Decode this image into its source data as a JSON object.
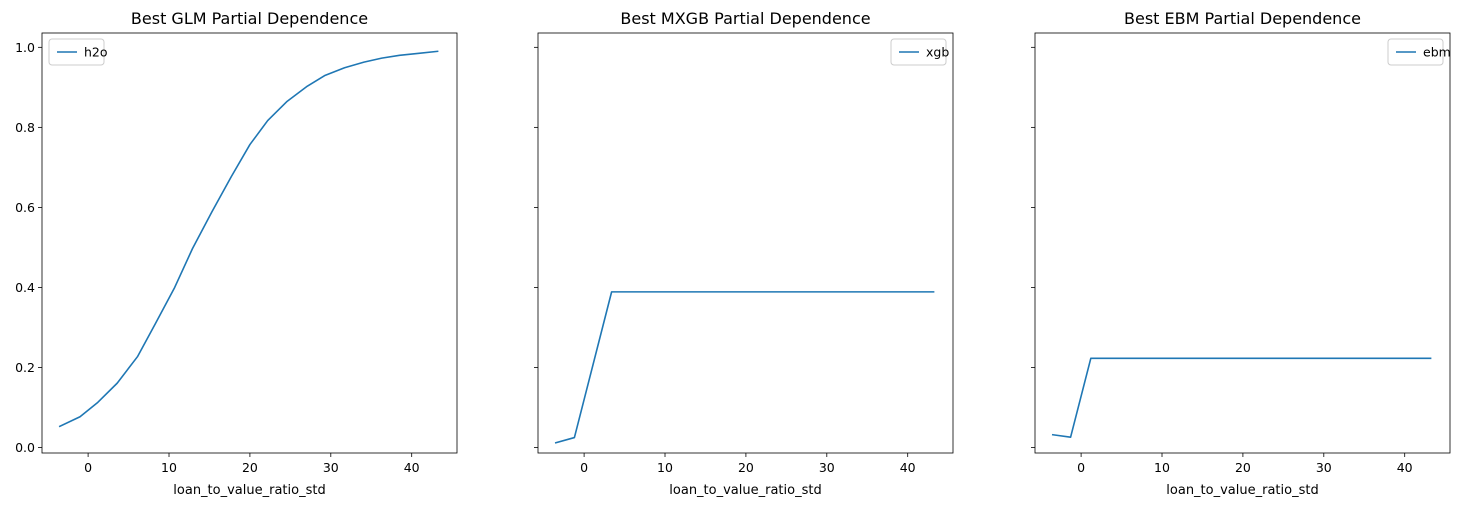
{
  "chart_data": [
    {
      "type": "line",
      "title": "Best GLM Partial Dependence",
      "xlabel": "loan_to_value_ratio_std",
      "ylabel": "",
      "xlim": [
        -5.7,
        45.6
      ],
      "ylim": [
        -0.0136,
        1.0358
      ],
      "xticks": [
        0,
        10,
        20,
        30,
        40
      ],
      "yticks": [
        0.0,
        0.2,
        0.4,
        0.6,
        0.8,
        1.0
      ],
      "ytick_labels": [
        "0.0",
        "0.2",
        "0.4",
        "0.6",
        "0.8",
        "1.0"
      ],
      "show_yticklabels": true,
      "legend": "upper left",
      "grid": false,
      "series": [
        {
          "name": "h2o",
          "color": "#1f77b4",
          "x": [
            -3.5,
            -1.0,
            1.2,
            3.6,
            6.1,
            8.3,
            10.7,
            12.9,
            15.3,
            17.7,
            20.0,
            22.2,
            24.6,
            27.1,
            29.3,
            31.7,
            34.1,
            36.3,
            38.5,
            40.9,
            43.2
          ],
          "y": [
            0.053,
            0.077,
            0.113,
            0.161,
            0.227,
            0.309,
            0.4,
            0.497,
            0.589,
            0.677,
            0.757,
            0.817,
            0.865,
            0.903,
            0.93,
            0.949,
            0.963,
            0.973,
            0.98,
            0.985,
            0.99
          ]
        }
      ]
    },
    {
      "type": "line",
      "title": "Best MXGB Partial Dependence",
      "xlabel": "loan_to_value_ratio_std",
      "ylabel": "",
      "xlim": [
        -5.7,
        45.6
      ],
      "ylim": [
        -0.0136,
        1.0358
      ],
      "xticks": [
        0,
        10,
        20,
        30,
        40
      ],
      "yticks": [
        0.0,
        0.2,
        0.4,
        0.6,
        0.8,
        1.0
      ],
      "ytick_labels": [
        "0.0",
        "0.2",
        "0.4",
        "0.6",
        "0.8",
        "1.0"
      ],
      "show_yticklabels": false,
      "legend": "upper right",
      "grid": false,
      "series": [
        {
          "name": "xgb",
          "color": "#1f77b4",
          "x": [
            -3.5,
            -1.2,
            3.4,
            43.2
          ],
          "y": [
            0.012,
            0.025,
            0.389,
            0.389
          ]
        }
      ]
    },
    {
      "type": "line",
      "title": "Best EBM Partial Dependence",
      "xlabel": "loan_to_value_ratio_std",
      "ylabel": "",
      "xlim": [
        -5.7,
        45.6
      ],
      "ylim": [
        -0.0136,
        1.0358
      ],
      "xticks": [
        0,
        10,
        20,
        30,
        40
      ],
      "yticks": [
        0.0,
        0.2,
        0.4,
        0.6,
        0.8,
        1.0
      ],
      "ytick_labels": [
        "0.0",
        "0.2",
        "0.4",
        "0.6",
        "0.8",
        "1.0"
      ],
      "show_yticklabels": false,
      "legend": "upper right",
      "grid": false,
      "series": [
        {
          "name": "ebm",
          "color": "#1f77b4",
          "x": [
            -3.5,
            -1.3,
            1.2,
            43.2
          ],
          "y": [
            0.032,
            0.026,
            0.223,
            0.223
          ]
        }
      ]
    }
  ]
}
